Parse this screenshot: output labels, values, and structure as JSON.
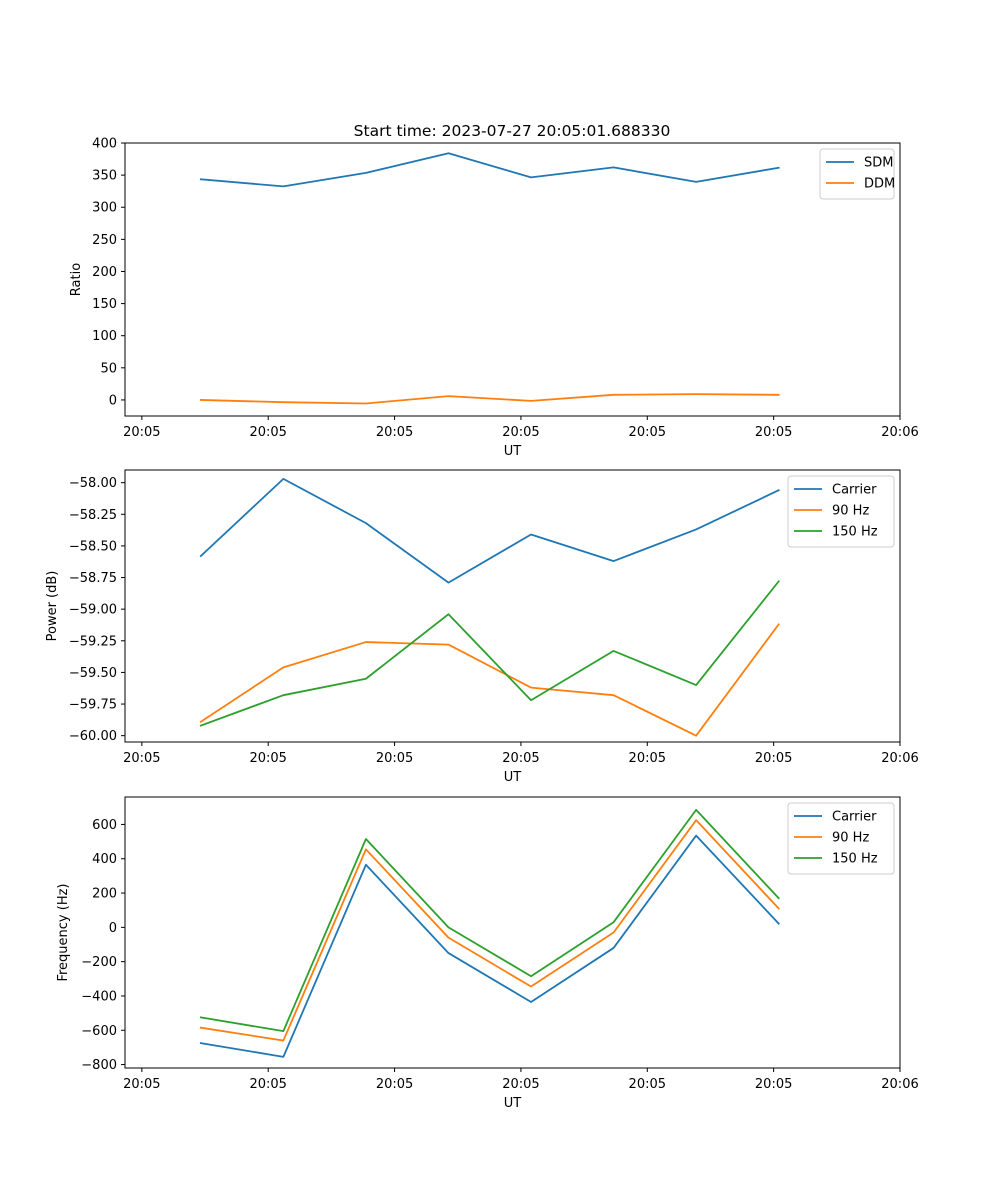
{
  "figure": {
    "title": "Start time: 2023-07-27 20:05:01.688330"
  },
  "colors": {
    "series_blue": "#1f77b4",
    "series_orange": "#ff7f0e",
    "series_green": "#2ca02c",
    "legend_border": "#cccccc"
  },
  "chart_data": [
    {
      "type": "line",
      "xlabel": "UT",
      "ylabel": "Ratio",
      "xlim": [
        -0.2,
        9
      ],
      "ylim": [
        -25,
        400
      ],
      "x_ticks": [
        0,
        1.5,
        3,
        4.5,
        6,
        7.5,
        9
      ],
      "x_tick_labels": [
        "20:05",
        "20:05",
        "20:05",
        "20:05",
        "20:05",
        "20:05",
        "20:06"
      ],
      "y_ticks": [
        0,
        50,
        100,
        150,
        200,
        250,
        300,
        350,
        400
      ],
      "y_tick_labels": [
        "0",
        "50",
        "100",
        "150",
        "200",
        "250",
        "300",
        "350",
        "400"
      ],
      "x": [
        0.7,
        1.68,
        2.66,
        3.64,
        4.62,
        5.6,
        6.58,
        7.56
      ],
      "series": [
        {
          "name": "SDM",
          "color": "#1f77b4",
          "values": [
            343.5,
            332.5,
            353.5,
            384,
            346.5,
            362,
            339.5,
            361.5
          ]
        },
        {
          "name": "DDM",
          "color": "#ff7f0e",
          "values": [
            0,
            -3.5,
            -5.5,
            6,
            -1.5,
            8,
            9,
            8
          ]
        }
      ],
      "legend_position": "upper right",
      "grid": false
    },
    {
      "type": "line",
      "xlabel": "UT",
      "ylabel": "Power (dB)",
      "xlim": [
        -0.2,
        9
      ],
      "ylim": [
        -60.05,
        -57.9
      ],
      "x_ticks": [
        0,
        1.5,
        3,
        4.5,
        6,
        7.5,
        9
      ],
      "x_tick_labels": [
        "20:05",
        "20:05",
        "20:05",
        "20:05",
        "20:05",
        "20:05",
        "20:06"
      ],
      "y_ticks": [
        -60,
        -59.75,
        -59.5,
        -59.25,
        -59,
        -58.75,
        -58.5,
        -58.25,
        -58
      ],
      "y_tick_labels": [
        "−60.00",
        "−59.75",
        "−59.50",
        "−59.25",
        "−59.00",
        "−58.75",
        "−58.50",
        "−58.25",
        "−58.00"
      ],
      "x": [
        0.7,
        1.68,
        2.66,
        3.64,
        4.62,
        5.6,
        6.58,
        7.56
      ],
      "series": [
        {
          "name": "Carrier",
          "color": "#1f77b4",
          "values": [
            -58.58,
            -57.97,
            -58.32,
            -58.79,
            -58.41,
            -58.62,
            -58.37,
            -58.06
          ]
        },
        {
          "name": "90 Hz",
          "color": "#ff7f0e",
          "values": [
            -59.89,
            -59.46,
            -59.26,
            -59.28,
            -59.62,
            -59.68,
            -60.0,
            -59.12
          ]
        },
        {
          "name": "150 Hz",
          "color": "#2ca02c",
          "values": [
            -59.92,
            -59.68,
            -59.55,
            -59.04,
            -59.72,
            -59.33,
            -59.6,
            -58.78
          ]
        }
      ],
      "legend_position": "upper right",
      "grid": false
    },
    {
      "type": "line",
      "xlabel": "UT",
      "ylabel": "Frequency (Hz)",
      "xlim": [
        -0.2,
        9
      ],
      "ylim": [
        -820,
        760
      ],
      "x_ticks": [
        0,
        1.5,
        3,
        4.5,
        6,
        7.5,
        9
      ],
      "x_tick_labels": [
        "20:05",
        "20:05",
        "20:05",
        "20:05",
        "20:05",
        "20:05",
        "20:06"
      ],
      "y_ticks": [
        -800,
        -600,
        -400,
        -200,
        0,
        200,
        400,
        600
      ],
      "y_tick_labels": [
        "−800",
        "−600",
        "−400",
        "−200",
        "0",
        "200",
        "400",
        "600"
      ],
      "x": [
        0.7,
        1.68,
        2.66,
        3.64,
        4.62,
        5.6,
        6.58,
        7.56
      ],
      "series": [
        {
          "name": "Carrier",
          "color": "#1f77b4",
          "values": [
            -675,
            -755,
            365,
            -150,
            -435,
            -120,
            535,
            22
          ]
        },
        {
          "name": "90 Hz",
          "color": "#ff7f0e",
          "values": [
            -585,
            -660,
            455,
            -60,
            -345,
            -30,
            625,
            110
          ]
        },
        {
          "name": "150 Hz",
          "color": "#2ca02c",
          "values": [
            -525,
            -605,
            515,
            0,
            -285,
            30,
            685,
            170
          ]
        }
      ],
      "legend_position": "upper right",
      "grid": false
    }
  ]
}
